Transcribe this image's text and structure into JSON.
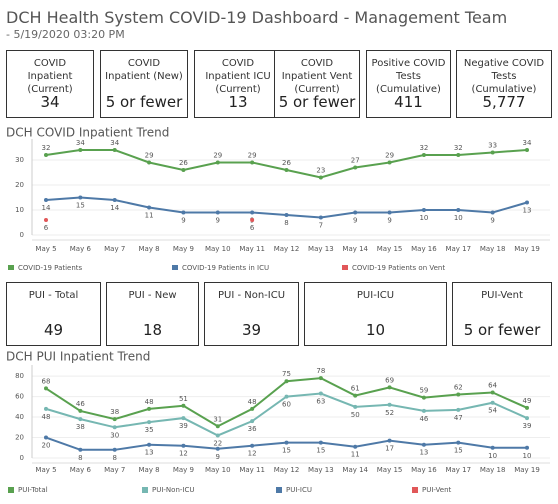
{
  "header": {
    "title": "DCH Health System COVID-19 Dashboard - Management Team",
    "subtitle": "- 5/19/2020 03:20 PM"
  },
  "cards_top": [
    {
      "title": "COVID Inpatient (Current)",
      "value": "34"
    },
    {
      "title": "COVID Inpatient (New)",
      "value": "5 or fewer"
    },
    {
      "title": "COVID Inpatient ICU (Current)",
      "value": "13"
    },
    {
      "title": "COVID Inpatient Vent (Current)",
      "value": "5 or fewer"
    },
    {
      "title": "Positive COVID Tests (Cumulative)",
      "value": "411"
    },
    {
      "title": "Negative COVID Tests (Cumulative)",
      "value": "5,777"
    }
  ],
  "cards_bottom": [
    {
      "title": "PUI - Total",
      "value": "49"
    },
    {
      "title": "PUI - New",
      "value": "18"
    },
    {
      "title": "PUI - Non-ICU",
      "value": "39"
    },
    {
      "title": "PUI-ICU",
      "value": "10"
    },
    {
      "title": "PUI-Vent",
      "value": "5 or fewer"
    }
  ],
  "chart_data": [
    {
      "type": "line",
      "title": "DCH COVID Inpatient Trend",
      "categories": [
        "May 5",
        "May 6",
        "May 7",
        "May 8",
        "May 9",
        "May 10",
        "May 11",
        "May 12",
        "May 13",
        "May 14",
        "May 15",
        "May 16",
        "May 17",
        "May 18",
        "May 19"
      ],
      "ylim": [
        0,
        36
      ],
      "yticks": [
        0,
        10,
        20,
        30
      ],
      "grid": true,
      "series": [
        {
          "name": "COVID-19 Patients",
          "color": "#59a14f",
          "values": [
            32,
            34,
            34,
            29,
            26,
            29,
            29,
            26,
            23,
            27,
            29,
            32,
            32,
            33,
            34
          ]
        },
        {
          "name": "COVID-19 Patients in ICU",
          "color": "#4e79a7",
          "values": [
            14,
            15,
            14,
            11,
            9,
            9,
            9,
            8,
            7,
            9,
            9,
            10,
            10,
            9,
            13
          ]
        },
        {
          "name": "COVID-19 Patients on Vent",
          "color": "#e15759",
          "values": [
            6,
            null,
            null,
            null,
            null,
            null,
            6,
            null,
            null,
            null,
            null,
            null,
            null,
            null,
            null
          ]
        }
      ]
    },
    {
      "type": "line",
      "title": "DCH PUI Inpatient Trend",
      "categories": [
        "May 5",
        "May 6",
        "May 7",
        "May 8",
        "May 9",
        "May 10",
        "May 11",
        "May 12",
        "May 13",
        "May 14",
        "May 15",
        "May 16",
        "May 17",
        "May 18",
        "May 19"
      ],
      "ylim": [
        0,
        85
      ],
      "yticks": [
        0,
        20,
        40,
        60,
        80
      ],
      "grid": true,
      "series": [
        {
          "name": "PUI-Total",
          "color": "#59a14f",
          "values": [
            68,
            46,
            38,
            48,
            51,
            31,
            48,
            75,
            78,
            61,
            69,
            59,
            62,
            64,
            49
          ]
        },
        {
          "name": "PUI-Non-ICU",
          "color": "#76b7b2",
          "values": [
            48,
            38,
            30,
            35,
            39,
            22,
            36,
            60,
            63,
            50,
            52,
            46,
            47,
            54,
            39
          ]
        },
        {
          "name": "PUI-ICU",
          "color": "#4e79a7",
          "values": [
            20,
            8,
            8,
            13,
            12,
            9,
            12,
            15,
            15,
            11,
            17,
            13,
            15,
            10,
            10
          ]
        },
        {
          "name": "PUI-Vent",
          "color": "#e15759",
          "values": [
            null,
            null,
            null,
            null,
            null,
            null,
            null,
            null,
            null,
            null,
            null,
            null,
            null,
            null,
            null
          ]
        }
      ]
    }
  ]
}
